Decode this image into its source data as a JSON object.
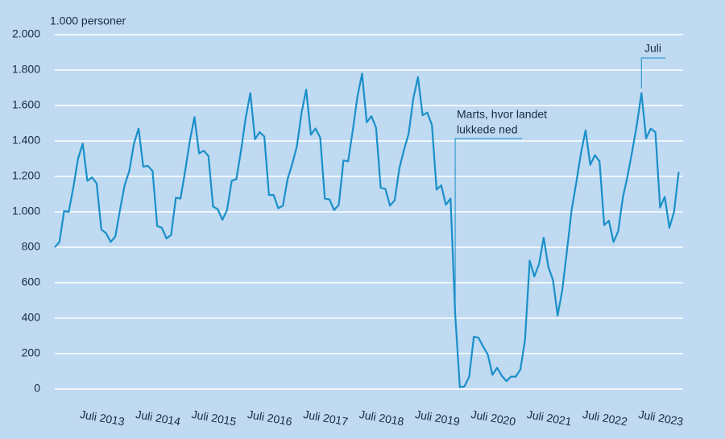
{
  "chart_data": {
    "type": "line",
    "y_unit_label": "1.000 personer",
    "categories": [
      null,
      null,
      null,
      null,
      null,
      null,
      "Juli 2013",
      null,
      null,
      null,
      null,
      null,
      null,
      null,
      null,
      null,
      null,
      null,
      "Juli 2014",
      null,
      null,
      null,
      null,
      null,
      null,
      null,
      null,
      null,
      null,
      null,
      "Juli 2015",
      null,
      null,
      null,
      null,
      null,
      null,
      null,
      null,
      null,
      null,
      null,
      "Juli 2016",
      null,
      null,
      null,
      null,
      null,
      null,
      null,
      null,
      null,
      null,
      null,
      "Juli 2017",
      null,
      null,
      null,
      null,
      null,
      null,
      null,
      null,
      null,
      null,
      null,
      "Juli 2018",
      null,
      null,
      null,
      null,
      null,
      null,
      null,
      null,
      null,
      null,
      null,
      "Juli 2019",
      null,
      null,
      null,
      null,
      null,
      null,
      null,
      null,
      null,
      null,
      null,
      "Juli 2020",
      null,
      null,
      null,
      null,
      null,
      null,
      null,
      null,
      null,
      null,
      null,
      "Juli 2021",
      null,
      null,
      null,
      null,
      null,
      null,
      null,
      null,
      null,
      null,
      null,
      "Juli 2022",
      null,
      null,
      null,
      null,
      null,
      null,
      null,
      null,
      null,
      null,
      null,
      "Juli 2023",
      null,
      null,
      null,
      null,
      null,
      null,
      null,
      null
    ],
    "values": [
      800,
      830,
      1005,
      1000,
      1140,
      1300,
      1385,
      1175,
      1195,
      1160,
      900,
      880,
      830,
      860,
      1010,
      1150,
      1230,
      1385,
      1470,
      1255,
      1260,
      1230,
      920,
      910,
      850,
      870,
      1080,
      1075,
      1230,
      1400,
      1535,
      1330,
      1345,
      1315,
      1030,
      1015,
      955,
      1010,
      1175,
      1185,
      1345,
      1530,
      1670,
      1410,
      1450,
      1425,
      1095,
      1095,
      1020,
      1035,
      1185,
      1270,
      1370,
      1560,
      1690,
      1435,
      1470,
      1420,
      1075,
      1070,
      1010,
      1040,
      1290,
      1285,
      1460,
      1650,
      1780,
      1505,
      1540,
      1475,
      1135,
      1130,
      1035,
      1065,
      1245,
      1350,
      1440,
      1640,
      1760,
      1545,
      1560,
      1490,
      1125,
      1150,
      1040,
      1075,
      420,
      10,
      15,
      70,
      295,
      290,
      240,
      195,
      80,
      120,
      75,
      45,
      70,
      70,
      110,
      280,
      725,
      635,
      705,
      855,
      690,
      615,
      415,
      560,
      780,
      1010,
      1165,
      1330,
      1460,
      1265,
      1320,
      1285,
      925,
      950,
      830,
      890,
      1080,
      1200,
      1340,
      1490,
      1670,
      1415,
      1470,
      1450,
      1025,
      1085,
      910,
      1000,
      1225
    ],
    "color": "#1a8fc9",
    "ylim": [
      0,
      2000
    ],
    "yticks": [
      0,
      200,
      400,
      600,
      800,
      {
        "value": 1000,
        "label": "1.000"
      },
      {
        "value": 1200,
        "label": "1.200"
      },
      {
        "value": 1400,
        "label": "1.400"
      },
      {
        "value": 1600,
        "label": "1.600"
      },
      {
        "value": 1800,
        "label": "1.800"
      },
      {
        "value": 2000,
        "label": "2.000"
      }
    ],
    "grid": true,
    "annotations": [
      {
        "lines": [
          "Marts, hvor landet",
          "lukkede ned"
        ]
      },
      {
        "lines": [
          "Juli"
        ]
      }
    ]
  }
}
